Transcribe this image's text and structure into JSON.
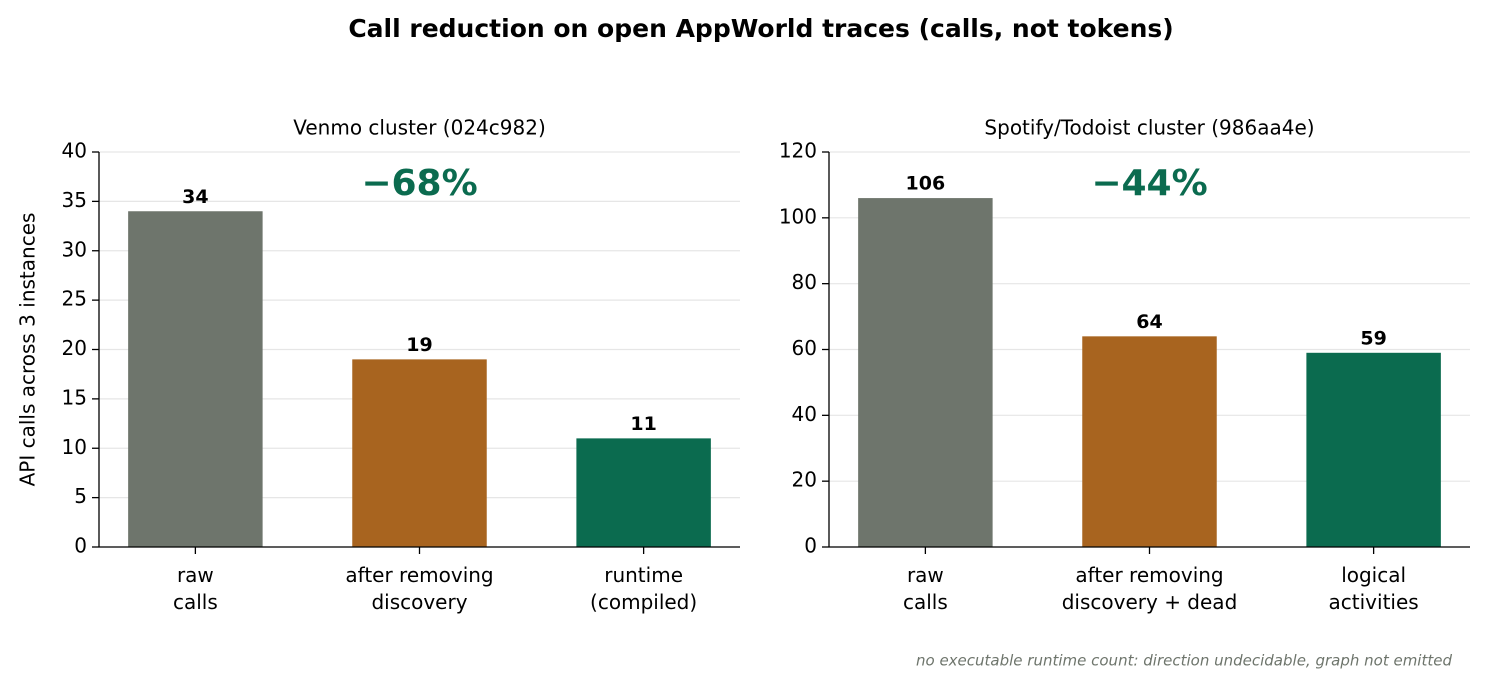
{
  "title": "Call reduction on open AppWorld traces (calls, not tokens)",
  "note": "no executable runtime count: direction undecidable, graph not emitted",
  "chart_data": [
    {
      "type": "bar",
      "title": "Venmo cluster (024c982)",
      "ylabel": "API calls across 3 instances",
      "categories": [
        [
          "raw",
          "calls"
        ],
        [
          "after removing",
          "discovery"
        ],
        [
          "runtime",
          "(compiled)"
        ]
      ],
      "values": [
        34,
        19,
        11
      ],
      "colors": [
        "#6e756c",
        "#a8641f",
        "#0b6b4f"
      ],
      "annotation": "−68%",
      "annotation_color": "#0b6b4f",
      "ylim": [
        0,
        40
      ],
      "yticks": [
        0,
        5,
        10,
        15,
        20,
        25,
        30,
        35,
        40
      ],
      "grid": true
    },
    {
      "type": "bar",
      "title": "Spotify/Todoist cluster (986aa4e)",
      "categories": [
        [
          "raw",
          "calls"
        ],
        [
          "after removing",
          "discovery + dead"
        ],
        [
          "logical",
          "activities"
        ]
      ],
      "values": [
        106,
        64,
        59
      ],
      "colors": [
        "#6e756c",
        "#a8641f",
        "#0b6b4f"
      ],
      "annotation": "−44%",
      "annotation_color": "#0b6b4f",
      "ylim": [
        0,
        120
      ],
      "yticks": [
        0,
        20,
        40,
        60,
        80,
        100,
        120
      ],
      "grid": true
    }
  ]
}
